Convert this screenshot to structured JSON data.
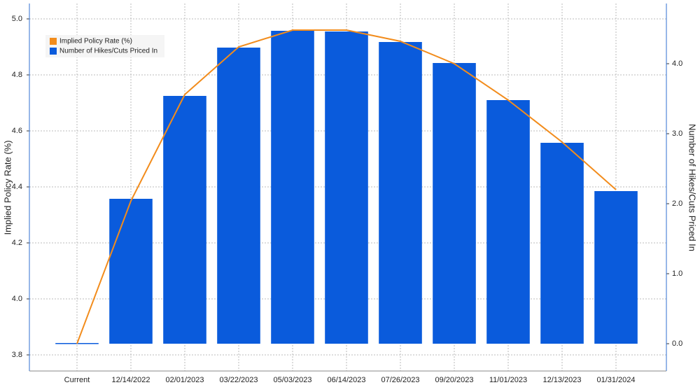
{
  "chart_data": {
    "type": "bar",
    "categories": [
      "Current",
      "12/14/2022",
      "02/01/2023",
      "03/22/2023",
      "05/03/2023",
      "06/14/2023",
      "07/26/2023",
      "09/20/2023",
      "11/01/2023",
      "12/13/2023",
      "01/31/2024"
    ],
    "series": [
      {
        "name": "Implied Policy Rate (%)",
        "type": "line",
        "color": "#f28c1c",
        "axis": "y",
        "values": [
          3.84,
          4.35,
          4.73,
          4.9,
          4.96,
          4.96,
          4.92,
          4.84,
          4.71,
          4.56,
          4.39
        ]
      },
      {
        "name": "Number of Hikes/Cuts Priced In",
        "type": "bar",
        "color": "#0a5bdc",
        "axis": "y2",
        "values": [
          0,
          2.07,
          3.54,
          4.23,
          4.47,
          4.46,
          4.31,
          4.01,
          3.48,
          2.87,
          2.18
        ]
      }
    ],
    "ylabel": "Implied Policy Rate (%)",
    "y2label": "Number of Hikes/Cuts Priced In",
    "ylim": [
      3.7425,
      5.055
    ],
    "yticks": [
      3.8,
      {
        "value": 4,
        "label": "4.0"
      },
      4.2,
      4.4,
      4.6,
      4.8,
      {
        "value": 5,
        "label": "5.0"
      }
    ],
    "y2lim": [
      -0.39,
      4.86
    ],
    "y2ticks": [
      {
        "value": 0,
        "label": "0.0"
      },
      {
        "value": 1,
        "label": "1.0"
      },
      {
        "value": 2,
        "label": "2.0"
      },
      {
        "value": 3,
        "label": "3.0"
      },
      {
        "value": 4,
        "label": "4.0"
      }
    ],
    "grid": true,
    "legend": "upper-left"
  }
}
